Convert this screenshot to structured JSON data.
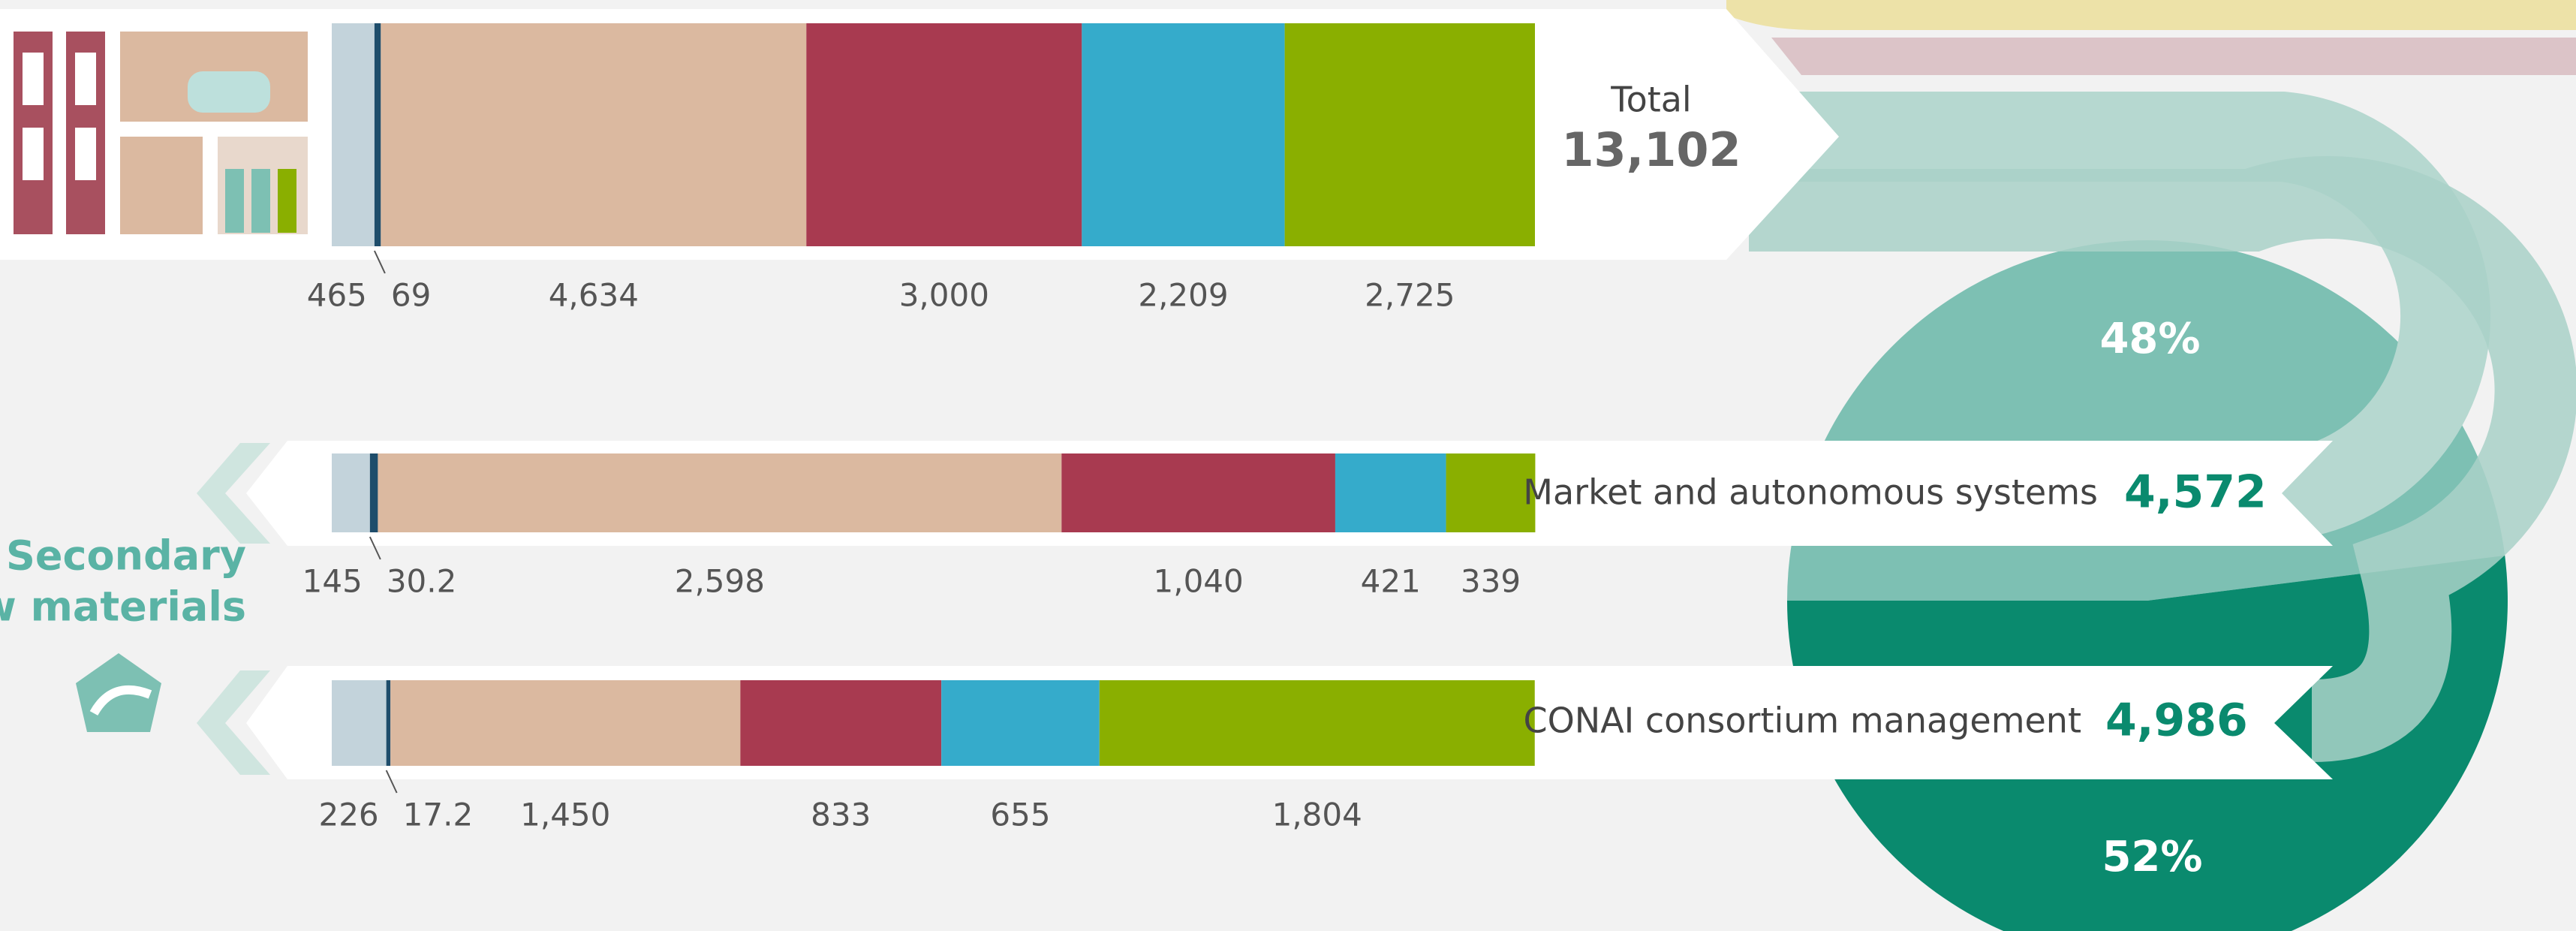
{
  "chart_data": [
    {
      "type": "bar",
      "title": "Total",
      "total_label": "13,102",
      "xlim": [
        0,
        13102
      ],
      "series": [
        {
          "color": "#c3d3db",
          "values": [
            465
          ]
        },
        {
          "color": "#1e4d6b",
          "values": [
            69
          ]
        },
        {
          "color": "#dbb9a0",
          "values": [
            4634
          ],
          "value_labels": [
            "4,634"
          ]
        },
        {
          "color": "#a83a50",
          "values": [
            3000
          ],
          "value_labels": [
            "3,000"
          ]
        },
        {
          "color": "#35abcb",
          "values": [
            2209
          ],
          "value_labels": [
            "2,209"
          ]
        },
        {
          "color": "#8aaf00",
          "values": [
            2725
          ],
          "value_labels": [
            "2,725"
          ]
        }
      ]
    },
    {
      "type": "bar",
      "title": "Market and autonomous systems",
      "total_label": "4,572",
      "xlim": [
        0,
        4572
      ],
      "series": [
        {
          "color": "#c3d3db",
          "values": [
            145
          ]
        },
        {
          "color": "#1e4d6b",
          "values": [
            30.2
          ]
        },
        {
          "color": "#dbb9a0",
          "values": [
            2598
          ],
          "value_labels": [
            "2,598"
          ]
        },
        {
          "color": "#a83a50",
          "values": [
            1040
          ],
          "value_labels": [
            "1,040"
          ]
        },
        {
          "color": "#35abcb",
          "values": [
            421
          ]
        },
        {
          "color": "#8aaf00",
          "values": [
            339
          ]
        }
      ]
    },
    {
      "type": "bar",
      "title": "CONAI consortium management",
      "total_label": "4,986",
      "xlim": [
        0,
        4986
      ],
      "series": [
        {
          "color": "#c3d3db",
          "values": [
            226
          ]
        },
        {
          "color": "#1e4d6b",
          "values": [
            17.2
          ]
        },
        {
          "color": "#dbb9a0",
          "values": [
            1450
          ],
          "value_labels": [
            "1,450"
          ]
        },
        {
          "color": "#a83a50",
          "values": [
            833
          ]
        },
        {
          "color": "#35abcb",
          "values": [
            655
          ]
        },
        {
          "color": "#8aaf00",
          "values": [
            1804
          ],
          "value_labels": [
            "1,804"
          ]
        }
      ]
    },
    {
      "type": "pie",
      "values": [
        48,
        52
      ],
      "value_labels": [
        "48%",
        "52%"
      ],
      "colors": [
        "#7dc0b3",
        "#0a8a6e"
      ],
      "annotation": [
        "Secondary",
        "raw materials"
      ]
    }
  ]
}
